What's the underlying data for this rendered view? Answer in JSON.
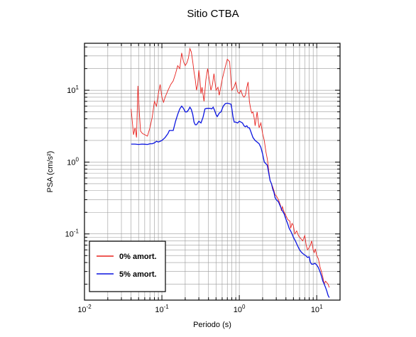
{
  "chart_data": {
    "type": "line",
    "title": "Sitio CTBA",
    "xlabel": "Periodo (s)",
    "ylabel": "PSA (cm/s²)",
    "xscale": "log",
    "yscale": "log",
    "xlim": [
      0.01,
      20
    ],
    "ylim": [
      0.012,
      45
    ],
    "grid": true,
    "legend_position": "bottom-left",
    "x_ticks": [
      {
        "value": 0.01,
        "base": "10",
        "exp": "-2"
      },
      {
        "value": 0.1,
        "base": "10",
        "exp": "-1"
      },
      {
        "value": 1,
        "base": "10",
        "exp": "0"
      },
      {
        "value": 10,
        "base": "10",
        "exp": "1"
      }
    ],
    "y_ticks": [
      {
        "value": 0.1,
        "base": "10",
        "exp": "-1"
      },
      {
        "value": 1,
        "base": "10",
        "exp": "0"
      },
      {
        "value": 10,
        "base": "10",
        "exp": "1"
      }
    ],
    "series": [
      {
        "name": "0% amort.",
        "color": "#e8231f",
        "points": [
          [
            0.04,
            5.5
          ],
          [
            0.041,
            4.2
          ],
          [
            0.043,
            2.4
          ],
          [
            0.045,
            3.0
          ],
          [
            0.047,
            2.2
          ],
          [
            0.049,
            11.5
          ],
          [
            0.051,
            5.0
          ],
          [
            0.053,
            2.7
          ],
          [
            0.056,
            2.5
          ],
          [
            0.06,
            2.4
          ],
          [
            0.065,
            2.3
          ],
          [
            0.07,
            3.0
          ],
          [
            0.075,
            4.2
          ],
          [
            0.08,
            7.0
          ],
          [
            0.085,
            6.0
          ],
          [
            0.09,
            9.0
          ],
          [
            0.095,
            12.0
          ],
          [
            0.1,
            8.0
          ],
          [
            0.105,
            6.8
          ],
          [
            0.11,
            8.0
          ],
          [
            0.12,
            10.0
          ],
          [
            0.13,
            12.0
          ],
          [
            0.14,
            13.5
          ],
          [
            0.15,
            17.0
          ],
          [
            0.16,
            22.0
          ],
          [
            0.17,
            20.0
          ],
          [
            0.18,
            33.0
          ],
          [
            0.19,
            25.0
          ],
          [
            0.2,
            22.0
          ],
          [
            0.21,
            24.0
          ],
          [
            0.22,
            28.0
          ],
          [
            0.23,
            38.0
          ],
          [
            0.24,
            34.0
          ],
          [
            0.25,
            25.0
          ],
          [
            0.26,
            18.0
          ],
          [
            0.27,
            14.0
          ],
          [
            0.28,
            10.0
          ],
          [
            0.29,
            12.0
          ],
          [
            0.3,
            19.0
          ],
          [
            0.31,
            14.0
          ],
          [
            0.32,
            9.0
          ],
          [
            0.33,
            11.0
          ],
          [
            0.35,
            7.0
          ],
          [
            0.37,
            14.0
          ],
          [
            0.39,
            20.0
          ],
          [
            0.41,
            14.0
          ],
          [
            0.43,
            10.0
          ],
          [
            0.45,
            12.0
          ],
          [
            0.47,
            17.0
          ],
          [
            0.49,
            12.0
          ],
          [
            0.5,
            10.0
          ],
          [
            0.53,
            11.0
          ],
          [
            0.55,
            8.5
          ],
          [
            0.6,
            14.0
          ],
          [
            0.65,
            20.0
          ],
          [
            0.7,
            27.0
          ],
          [
            0.75,
            25.0
          ],
          [
            0.78,
            14.0
          ],
          [
            0.8,
            10.0
          ],
          [
            0.85,
            11.0
          ],
          [
            0.9,
            13.0
          ],
          [
            0.95,
            9.5
          ],
          [
            1.0,
            9.0
          ],
          [
            1.05,
            10.0
          ],
          [
            1.1,
            8.5
          ],
          [
            1.15,
            8.0
          ],
          [
            1.2,
            8.5
          ],
          [
            1.25,
            11.0
          ],
          [
            1.3,
            13.0
          ],
          [
            1.35,
            7.0
          ],
          [
            1.4,
            5.5
          ],
          [
            1.45,
            4.8
          ],
          [
            1.5,
            5.0
          ],
          [
            1.55,
            4.2
          ],
          [
            1.6,
            3.2
          ],
          [
            1.7,
            5.0
          ],
          [
            1.75,
            3.8
          ],
          [
            1.8,
            3.0
          ],
          [
            1.9,
            3.5
          ],
          [
            2.0,
            2.5
          ],
          [
            2.1,
            2.0
          ],
          [
            2.2,
            1.4
          ],
          [
            2.3,
            1.1
          ],
          [
            2.4,
            0.75
          ],
          [
            2.5,
            0.55
          ],
          [
            2.6,
            0.5
          ],
          [
            2.7,
            0.45
          ],
          [
            2.8,
            0.4
          ],
          [
            2.9,
            0.35
          ],
          [
            3.0,
            0.34
          ],
          [
            3.2,
            0.3
          ],
          [
            3.4,
            0.25
          ],
          [
            3.5,
            0.21
          ],
          [
            3.6,
            0.24
          ],
          [
            3.8,
            0.2
          ],
          [
            4.0,
            0.18
          ],
          [
            4.2,
            0.16
          ],
          [
            4.5,
            0.15
          ],
          [
            4.6,
            0.12
          ],
          [
            4.8,
            0.14
          ],
          [
            5.0,
            0.13
          ],
          [
            5.2,
            0.1
          ],
          [
            5.5,
            0.11
          ],
          [
            5.8,
            0.095
          ],
          [
            6.0,
            0.09
          ],
          [
            6.3,
            0.085
          ],
          [
            6.6,
            0.08
          ],
          [
            7.0,
            0.095
          ],
          [
            7.3,
            0.07
          ],
          [
            7.6,
            0.06
          ],
          [
            8.0,
            0.065
          ],
          [
            8.3,
            0.07
          ],
          [
            8.6,
            0.08
          ],
          [
            9.0,
            0.06
          ],
          [
            9.3,
            0.055
          ],
          [
            9.6,
            0.062
          ],
          [
            10.0,
            0.05
          ],
          [
            10.5,
            0.045
          ],
          [
            11.0,
            0.035
          ],
          [
            11.5,
            0.03
          ],
          [
            12.0,
            0.025
          ],
          [
            12.5,
            0.02
          ],
          [
            13.0,
            0.022
          ],
          [
            14.0,
            0.02
          ],
          [
            14.5,
            0.018
          ]
        ]
      },
      {
        "name": "5% amort.",
        "color": "#0a14e0",
        "points": [
          [
            0.04,
            1.78
          ],
          [
            0.045,
            1.78
          ],
          [
            0.05,
            1.76
          ],
          [
            0.055,
            1.78
          ],
          [
            0.06,
            1.77
          ],
          [
            0.065,
            1.76
          ],
          [
            0.07,
            1.8
          ],
          [
            0.075,
            1.8
          ],
          [
            0.08,
            1.85
          ],
          [
            0.085,
            1.95
          ],
          [
            0.09,
            1.9
          ],
          [
            0.095,
            1.95
          ],
          [
            0.1,
            2.0
          ],
          [
            0.11,
            2.2
          ],
          [
            0.12,
            2.5
          ],
          [
            0.125,
            2.75
          ],
          [
            0.13,
            2.75
          ],
          [
            0.14,
            2.75
          ],
          [
            0.15,
            3.7
          ],
          [
            0.16,
            4.6
          ],
          [
            0.17,
            5.5
          ],
          [
            0.18,
            6.0
          ],
          [
            0.19,
            5.6
          ],
          [
            0.2,
            5.0
          ],
          [
            0.21,
            5.0
          ],
          [
            0.22,
            5.3
          ],
          [
            0.23,
            5.8
          ],
          [
            0.24,
            5.4
          ],
          [
            0.25,
            4.6
          ],
          [
            0.26,
            3.6
          ],
          [
            0.27,
            3.3
          ],
          [
            0.28,
            3.3
          ],
          [
            0.29,
            3.5
          ],
          [
            0.3,
            3.7
          ],
          [
            0.32,
            3.5
          ],
          [
            0.34,
            4.2
          ],
          [
            0.36,
            5.5
          ],
          [
            0.38,
            5.6
          ],
          [
            0.4,
            5.6
          ],
          [
            0.42,
            5.6
          ],
          [
            0.44,
            5.5
          ],
          [
            0.46,
            5.8
          ],
          [
            0.48,
            5.2
          ],
          [
            0.5,
            4.6
          ],
          [
            0.52,
            4.3
          ],
          [
            0.55,
            4.8
          ],
          [
            0.58,
            5.0
          ],
          [
            0.62,
            6.0
          ],
          [
            0.66,
            6.5
          ],
          [
            0.7,
            6.6
          ],
          [
            0.74,
            6.5
          ],
          [
            0.78,
            6.4
          ],
          [
            0.8,
            5.6
          ],
          [
            0.83,
            4.2
          ],
          [
            0.86,
            3.6
          ],
          [
            0.9,
            3.6
          ],
          [
            0.95,
            3.5
          ],
          [
            1.0,
            3.7
          ],
          [
            1.05,
            3.6
          ],
          [
            1.1,
            3.5
          ],
          [
            1.15,
            3.2
          ],
          [
            1.2,
            3.1
          ],
          [
            1.25,
            3.2
          ],
          [
            1.3,
            3.0
          ],
          [
            1.35,
            3.0
          ],
          [
            1.4,
            2.7
          ],
          [
            1.5,
            2.2
          ],
          [
            1.6,
            2.0
          ],
          [
            1.7,
            1.9
          ],
          [
            1.8,
            1.8
          ],
          [
            1.9,
            1.6
          ],
          [
            2.0,
            1.3
          ],
          [
            2.1,
            1.0
          ],
          [
            2.2,
            0.95
          ],
          [
            2.3,
            0.9
          ],
          [
            2.4,
            0.7
          ],
          [
            2.5,
            0.55
          ],
          [
            2.6,
            0.5
          ],
          [
            2.7,
            0.42
          ],
          [
            2.8,
            0.38
          ],
          [
            2.9,
            0.32
          ],
          [
            3.0,
            0.3
          ],
          [
            3.2,
            0.28
          ],
          [
            3.4,
            0.24
          ],
          [
            3.6,
            0.21
          ],
          [
            3.8,
            0.19
          ],
          [
            4.0,
            0.16
          ],
          [
            4.2,
            0.14
          ],
          [
            4.4,
            0.12
          ],
          [
            4.6,
            0.11
          ],
          [
            4.8,
            0.1
          ],
          [
            5.0,
            0.09
          ],
          [
            5.3,
            0.08
          ],
          [
            5.6,
            0.07
          ],
          [
            6.0,
            0.06
          ],
          [
            6.4,
            0.055
          ],
          [
            6.8,
            0.052
          ],
          [
            7.2,
            0.05
          ],
          [
            7.6,
            0.047
          ],
          [
            8.0,
            0.048
          ],
          [
            8.3,
            0.04
          ],
          [
            8.6,
            0.038
          ],
          [
            9.0,
            0.038
          ],
          [
            9.5,
            0.039
          ],
          [
            10.0,
            0.037
          ],
          [
            10.5,
            0.034
          ],
          [
            11.0,
            0.03
          ],
          [
            11.5,
            0.026
          ],
          [
            12.0,
            0.022
          ],
          [
            12.5,
            0.02
          ],
          [
            13.0,
            0.018
          ],
          [
            13.5,
            0.016
          ],
          [
            14.0,
            0.014
          ],
          [
            14.5,
            0.013
          ]
        ]
      }
    ]
  }
}
